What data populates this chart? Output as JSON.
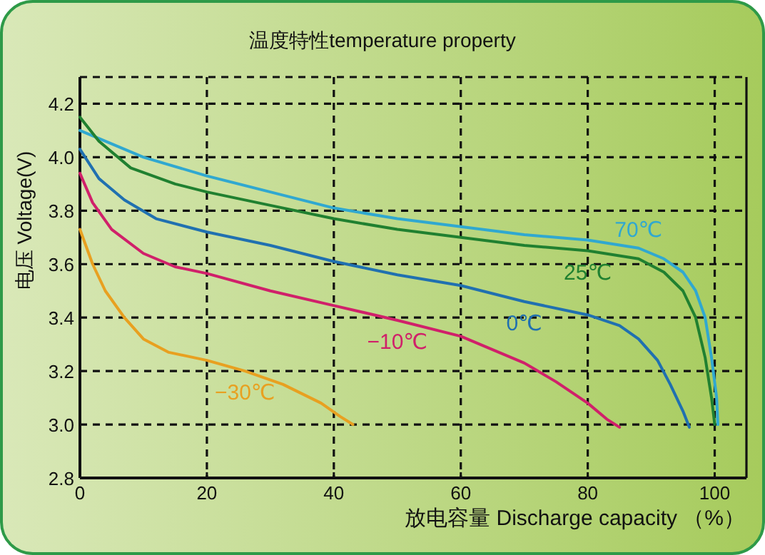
{
  "chart_data": {
    "type": "line",
    "title": "温度特性temperature property",
    "xlabel": "放电容量 Discharge capacity （%）",
    "ylabel": "电压 Voltage(V)",
    "xlim": [
      0,
      105
    ],
    "ylim": [
      2.8,
      4.3
    ],
    "xticks": [
      0,
      20,
      40,
      60,
      80,
      100
    ],
    "yticks": [
      {
        "value": 2.8,
        "label": "2.8"
      },
      {
        "value": 3.0,
        "label": "3.0"
      },
      {
        "value": 3.2,
        "label": "3.2"
      },
      {
        "value": 3.4,
        "label": "3.4"
      },
      {
        "value": 3.6,
        "label": "3.6"
      },
      {
        "value": 3.8,
        "label": "3.8"
      },
      {
        "value": 4.0,
        "label": "4.0"
      },
      {
        "value": 4.2,
        "label": "4.2"
      }
    ],
    "grid": true,
    "marker": "none",
    "line_style": "solid",
    "series": [
      {
        "name": "70℃",
        "color": "#30a8d0",
        "x": [
          0,
          10,
          20,
          30,
          40,
          50,
          60,
          70,
          80,
          88,
          92,
          95,
          97,
          98.5,
          99.5,
          100.3,
          100.5
        ],
        "values": [
          4.1,
          4.0,
          3.93,
          3.87,
          3.81,
          3.77,
          3.74,
          3.71,
          3.69,
          3.66,
          3.62,
          3.57,
          3.5,
          3.4,
          3.25,
          3.1,
          3.0
        ]
      },
      {
        "name": "25℃",
        "color": "#208030",
        "x": [
          0,
          3,
          8,
          15,
          20,
          30,
          40,
          50,
          60,
          70,
          80,
          88,
          92,
          95,
          97,
          98.5,
          99.5,
          100
        ],
        "values": [
          4.15,
          4.06,
          3.96,
          3.9,
          3.87,
          3.82,
          3.77,
          3.73,
          3.7,
          3.67,
          3.65,
          3.62,
          3.57,
          3.5,
          3.4,
          3.25,
          3.1,
          3.0
        ]
      },
      {
        "name": "0℃",
        "color": "#2070b0",
        "x": [
          0,
          3,
          7,
          12,
          20,
          30,
          40,
          50,
          60,
          70,
          80,
          85,
          88,
          91,
          93,
          95,
          96
        ],
        "values": [
          4.03,
          3.92,
          3.84,
          3.77,
          3.72,
          3.67,
          3.61,
          3.56,
          3.52,
          3.46,
          3.41,
          3.37,
          3.32,
          3.24,
          3.15,
          3.05,
          2.99
        ]
      },
      {
        "name": "−10℃",
        "color": "#d0206a",
        "x": [
          0,
          2,
          5,
          10,
          15,
          20,
          30,
          40,
          50,
          60,
          70,
          75,
          80,
          83,
          85
        ],
        "values": [
          3.94,
          3.83,
          3.73,
          3.64,
          3.59,
          3.565,
          3.5,
          3.445,
          3.39,
          3.33,
          3.23,
          3.16,
          3.08,
          3.02,
          2.99
        ]
      },
      {
        "name": "−30℃",
        "color": "#e8a020",
        "x": [
          0,
          2,
          4,
          7,
          10,
          14,
          20,
          26,
          32,
          38,
          41,
          43
        ],
        "values": [
          3.73,
          3.6,
          3.5,
          3.4,
          3.32,
          3.27,
          3.24,
          3.2,
          3.15,
          3.08,
          3.03,
          3.0
        ]
      }
    ]
  }
}
